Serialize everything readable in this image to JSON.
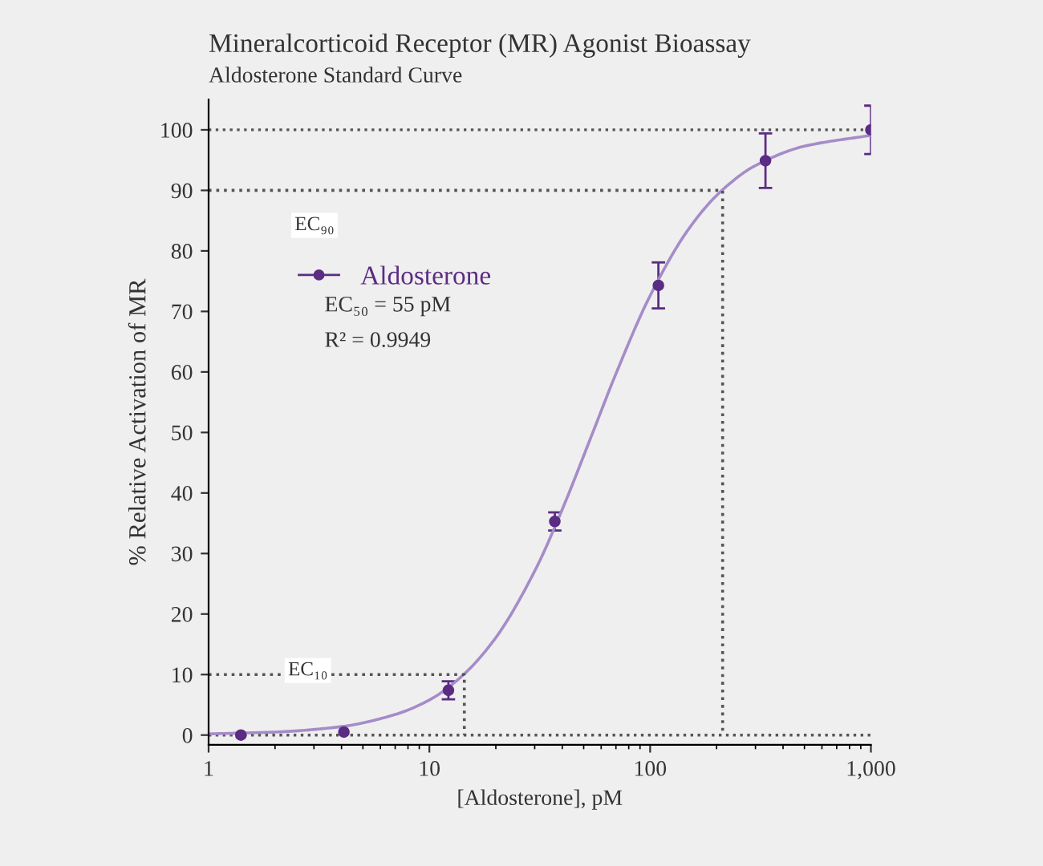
{
  "chart_data": {
    "type": "scatter",
    "title": "Mineralcorticoid Receptor (MR) Agonist Bioassay",
    "subtitle": "Aldosterone Standard Curve",
    "xlabel": "[Aldosterone], pM",
    "ylabel": "% Relative Activation of MR",
    "log": "x",
    "xlim": [
      1,
      1000
    ],
    "xticks": [
      1,
      10,
      100,
      {
        "value": 1000,
        "label": "1,000"
      }
    ],
    "ylim": [
      -1.6,
      105
    ],
    "yticks": [
      0,
      10,
      20,
      30,
      40,
      50,
      60,
      70,
      80,
      90,
      100
    ],
    "grid": false,
    "legend": "top left",
    "series": [
      {
        "name": "Aldosterone",
        "marker": "circle",
        "color": "#5b2c83",
        "x": [
          1.4,
          4.1,
          12.2,
          37,
          109,
          333,
          1000
        ],
        "values": [
          0,
          0.5,
          7.4,
          35.3,
          74.3,
          94.9,
          100
        ],
        "errors": [
          null,
          null,
          1.5,
          1.5,
          3.8,
          4.5,
          4
        ]
      },
      {
        "type": "line",
        "color": "#a58cc8",
        "line_style": "solid",
        "x": [
          1,
          2,
          4,
          7,
          10,
          14,
          20,
          30,
          40,
          55,
          70,
          100,
          150,
          210,
          300,
          500,
          1000
        ],
        "values": [
          0.2,
          0.5,
          1.4,
          3.4,
          5.8,
          9.7,
          16.1,
          27.1,
          37.3,
          50,
          59.7,
          72.6,
          83.7,
          89.9,
          94.1,
          97.3,
          99.1
        ]
      },
      {
        "type": "line",
        "color": "#555555",
        "line_style": "dotted",
        "x": [
          1,
          213,
          213
        ],
        "values": [
          90,
          90,
          0
        ]
      },
      {
        "type": "line",
        "color": "#555555",
        "line_style": "dotted",
        "x": [
          1,
          14.4,
          14.4
        ],
        "values": [
          10,
          10,
          0
        ]
      }
    ],
    "ref_lines": [
      {
        "axis": "y",
        "value": 100,
        "color": "#555555",
        "line_style": "dotted"
      },
      {
        "axis": "y",
        "value": 0,
        "color": "#555555",
        "line_style": "dotted"
      }
    ],
    "annotations": [
      "EC₉₀",
      "EC₁₀",
      "EC₅₀ = 55 pM",
      "R² = 0.9949"
    ]
  }
}
